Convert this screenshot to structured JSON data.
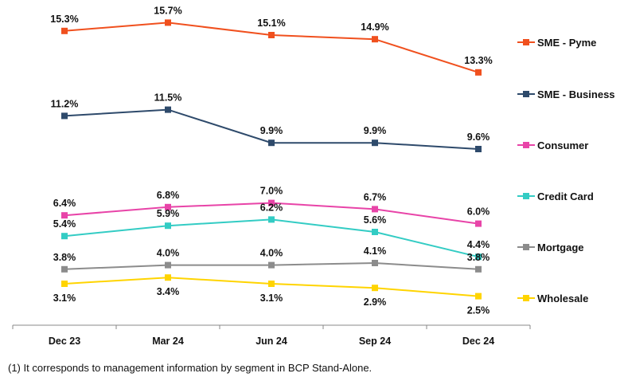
{
  "chart_data": {
    "type": "line",
    "categories": [
      "Dec 23",
      "Mar 24",
      "Jun 24",
      "Sep 24",
      "Dec 24"
    ],
    "ylim": [
      1.1,
      16.8
    ],
    "grid": false,
    "legend_position": "right",
    "value_suffix": "%",
    "series": [
      {
        "name": "SME - Pyme",
        "color": "#F0501E",
        "values": [
          15.3,
          15.7,
          15.1,
          14.9,
          13.3
        ],
        "labels": "above"
      },
      {
        "name": "SME - Business",
        "color": "#2E4A6B",
        "values": [
          11.2,
          11.5,
          9.9,
          9.9,
          9.6
        ],
        "labels": "above"
      },
      {
        "name": "Consumer",
        "color": "#E844A8",
        "values": [
          6.4,
          6.8,
          7.0,
          6.7,
          6.0
        ],
        "labels": "above"
      },
      {
        "name": "Credit Card",
        "color": "#33CCC4",
        "values": [
          5.4,
          5.9,
          6.2,
          5.6,
          4.4
        ],
        "labels": "above"
      },
      {
        "name": "Mortgage",
        "color": "#8C8C8C",
        "values": [
          3.8,
          4.0,
          4.0,
          4.1,
          3.8
        ],
        "labels": "above"
      },
      {
        "name": "Wholesale",
        "color": "#FFD400",
        "values": [
          3.1,
          3.4,
          3.1,
          2.9,
          2.5
        ],
        "labels": "below"
      }
    ]
  },
  "footnote": "(1) It corresponds to management information by segment in BCP Stand-Alone."
}
